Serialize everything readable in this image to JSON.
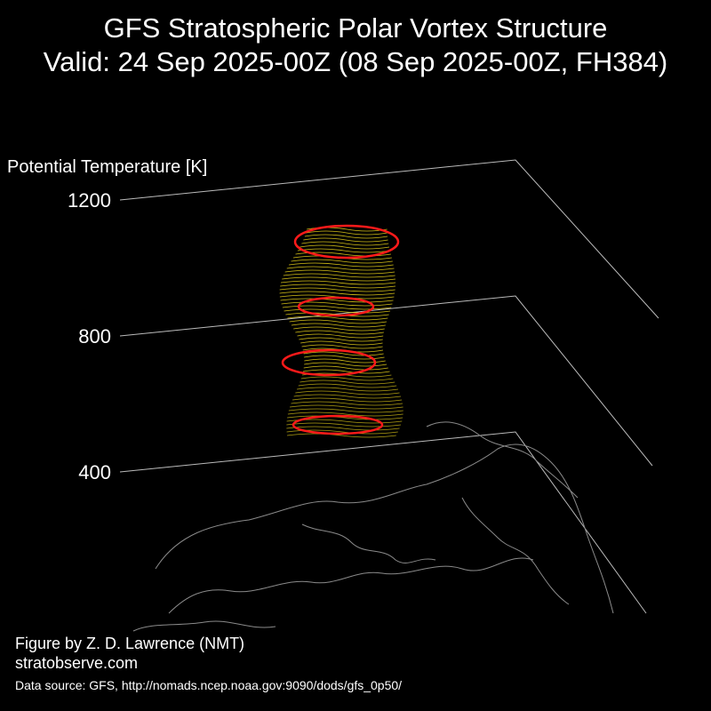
{
  "chart_data": {
    "type": "3d-isentropic",
    "title": "GFS Stratospheric Polar Vortex Structure",
    "subtitle": "Valid: 24 Sep 2025-00Z  (08 Sep 2025-00Z, FH384)",
    "zlabel": "Potential Temperature [K]",
    "zlim": [
      400,
      1200
    ],
    "zticks": [
      400,
      800,
      1200
    ],
    "credit": "Figure by Z. D. Lawrence (NMT)",
    "website": "stratobserve.com",
    "source": "Data source: GFS, http://nomads.ncep.noaa.gov:9090/dods/gfs_0p50/",
    "contour_color": "#ff1a1a",
    "fill_color": "#e8d21a"
  }
}
